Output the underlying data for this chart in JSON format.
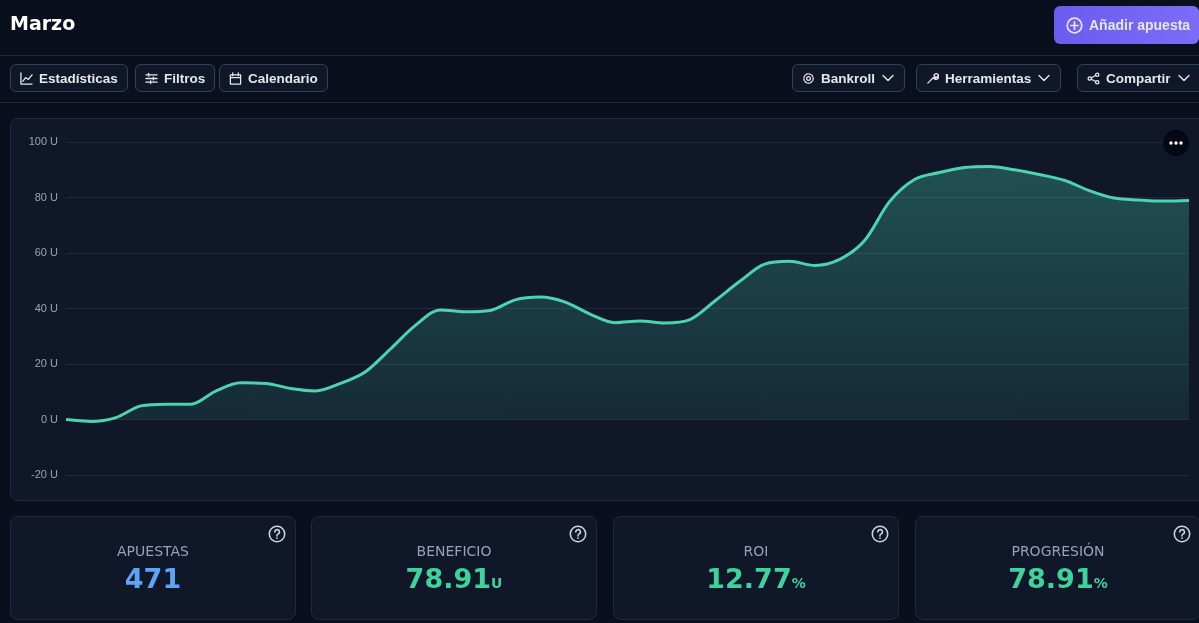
{
  "chart_data": [
    {
      "type": "other",
      "title": "Marzo",
      "annotations": [
        "Añadir apuesta",
        "Estadísticas",
        "Filtros",
        "Calendario",
        "Bankroll",
        "Herramientas",
        "Compartir"
      ]
    },
    {
      "type": "area",
      "categories": [
        null,
        null,
        null,
        null,
        null,
        null,
        null,
        null,
        null,
        null,
        null,
        null,
        null,
        null,
        null,
        null,
        null,
        null,
        null,
        null,
        null,
        null,
        null,
        null,
        null,
        null,
        null,
        null,
        null,
        null,
        null,
        null,
        null,
        null,
        null,
        null,
        null,
        null,
        null,
        null,
        null,
        null,
        null,
        null,
        null,
        null
      ],
      "series": [
        {
          "color": "#4cd4b0",
          "values": [
            0,
            -0.7,
            0.7,
            4.9,
            5.5,
            5.5,
            10.2,
            13.2,
            13,
            11.2,
            10.3,
            13,
            17.2,
            25.4,
            33.9,
            39.5,
            38.8,
            39.3,
            43.1,
            44.1,
            42.3,
            38,
            34.9,
            35.5,
            34.8,
            36,
            42.7,
            49.8,
            56,
            57,
            55.5,
            57.7,
            64.5,
            78.5,
            86.5,
            89,
            90.8,
            91.2,
            90,
            88.3,
            86.2,
            82.5,
            79.8,
            79.1,
            78.7,
            78.9
          ]
        }
      ],
      "ylim": [
        -20,
        100
      ],
      "yticks": [
        {
          "value": -20,
          "label": "-20 U"
        },
        {
          "value": 0,
          "label": "0 U"
        },
        {
          "value": 20,
          "label": "20 U"
        },
        {
          "value": 40,
          "label": "40 U"
        },
        {
          "value": 60,
          "label": "60 U"
        },
        {
          "value": 80,
          "label": "80 U"
        },
        {
          "value": 100,
          "label": "100 U"
        }
      ],
      "grid": "y",
      "legend": false,
      "tick_labels": "y",
      "marker": "none",
      "line_style": "solid"
    },
    {
      "type": "other",
      "annotations": [
        "APUESTAS",
        "471",
        "BENEFICIO",
        "78.91U",
        "ROI",
        "12.77%",
        "PROGRESIÓN",
        "78.91%"
      ]
    }
  ]
}
